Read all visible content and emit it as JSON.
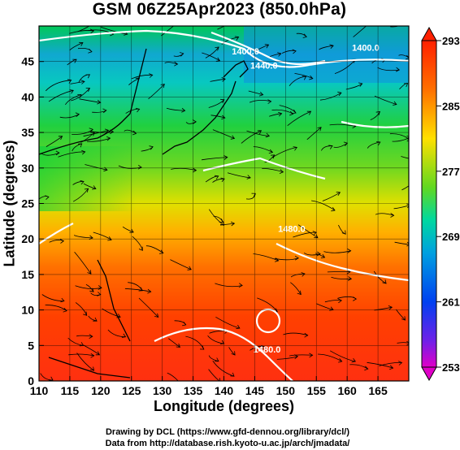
{
  "title": "GSM 06Z25Apr2023 (850.0hPa)",
  "xlabel": "Longitude (degrees)",
  "ylabel": "Latitude  (degrees)",
  "credits": {
    "line1": "Drawing by DCL (https://www.gfd-dennou.org/library/dcl/)",
    "line2": "Data from http://database.rish.kyoto-u.ac.jp/arch/jmadata/"
  },
  "chart_data": {
    "type": "heatmap",
    "field": "850hPa temperature with wind streamlines and geopotential height contours",
    "xlim": [
      110,
      170
    ],
    "ylim": [
      0,
      50
    ],
    "x_ticks": [
      110,
      115,
      120,
      125,
      130,
      135,
      140,
      145,
      150,
      155,
      160,
      165
    ],
    "y_ticks": [
      0,
      5,
      10,
      15,
      20,
      25,
      30,
      35,
      40,
      45
    ],
    "colorbar": {
      "min": 253,
      "max": 293,
      "tick_labels": [
        "293",
        "285",
        "277",
        "269",
        "261",
        "253"
      ],
      "colors": [
        "#e000c8",
        "#7020e8",
        "#0040f0",
        "#0090e0",
        "#00d0d0",
        "#00e080",
        "#40d020",
        "#b0e000",
        "#ffe000",
        "#ff9000",
        "#ff4000",
        "#ff2000"
      ]
    },
    "contour_labels": [
      {
        "text": "1400.0",
        "lon": 143.5,
        "lat": 46
      },
      {
        "text": "1440.0",
        "lon": 146.5,
        "lat": 44
      },
      {
        "text": "1400.0",
        "lon": 163,
        "lat": 46.5
      },
      {
        "text": "1480.0",
        "lon": 151,
        "lat": 21
      },
      {
        "text": "1480.0",
        "lon": 147,
        "lat": 4
      }
    ]
  }
}
